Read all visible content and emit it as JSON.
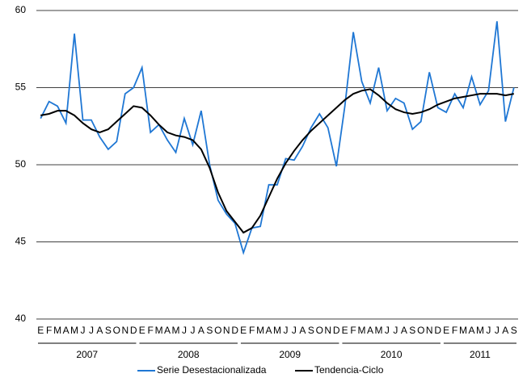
{
  "chart_data": {
    "type": "line",
    "categories": [
      "E",
      "F",
      "M",
      "A",
      "M",
      "J",
      "J",
      "A",
      "S",
      "O",
      "N",
      "D",
      "E",
      "F",
      "M",
      "A",
      "M",
      "J",
      "J",
      "A",
      "S",
      "O",
      "N",
      "D",
      "E",
      "F",
      "M",
      "A",
      "M",
      "J",
      "J",
      "A",
      "S",
      "O",
      "N",
      "D",
      "E",
      "F",
      "M",
      "A",
      "M",
      "J",
      "J",
      "A",
      "S",
      "O",
      "N",
      "D",
      "E",
      "F",
      "M",
      "A",
      "M",
      "J",
      "J",
      "A",
      "S"
    ],
    "year_groups": [
      "2007",
      "2008",
      "2009",
      "2010",
      "2011"
    ],
    "series": [
      {
        "name": "Serie Desestacionalizada",
        "color": "#1f77d4",
        "values": [
          53.0,
          54.1,
          53.8,
          52.7,
          58.5,
          52.9,
          52.9,
          51.8,
          51.0,
          51.5,
          54.6,
          55.0,
          56.3,
          52.1,
          52.6,
          51.6,
          50.8,
          53.0,
          51.3,
          53.5,
          50.0,
          47.7,
          46.8,
          46.2,
          44.3,
          45.9,
          46.0,
          48.7,
          48.7,
          50.4,
          50.3,
          51.2,
          52.4,
          53.3,
          52.4,
          49.9,
          53.8,
          58.6,
          55.4,
          54.0,
          56.3,
          53.5,
          54.3,
          54.0,
          52.3,
          52.8,
          56.0,
          53.7,
          53.4,
          54.6,
          53.7,
          55.7,
          53.9,
          54.8,
          59.3,
          52.8,
          55.0
        ]
      },
      {
        "name": "Tendencia-Ciclo",
        "color": "#000000",
        "values": [
          53.2,
          53.3,
          53.5,
          53.5,
          53.2,
          52.7,
          52.3,
          52.1,
          52.3,
          52.8,
          53.3,
          53.8,
          53.7,
          53.2,
          52.6,
          52.1,
          51.9,
          51.8,
          51.6,
          51.0,
          49.8,
          48.2,
          47.0,
          46.3,
          45.6,
          45.9,
          46.7,
          47.9,
          49.1,
          50.1,
          50.9,
          51.6,
          52.2,
          52.7,
          53.2,
          53.7,
          54.2,
          54.6,
          54.8,
          54.9,
          54.5,
          54.0,
          53.6,
          53.4,
          53.3,
          53.4,
          53.6,
          53.9,
          54.1,
          54.3,
          54.4,
          54.5,
          54.6,
          54.6,
          54.6,
          54.5,
          54.6
        ]
      }
    ],
    "ylim": [
      40,
      60
    ],
    "yticks": [
      40,
      45,
      50,
      55,
      60
    ],
    "grid": true,
    "legend": "bottom"
  }
}
